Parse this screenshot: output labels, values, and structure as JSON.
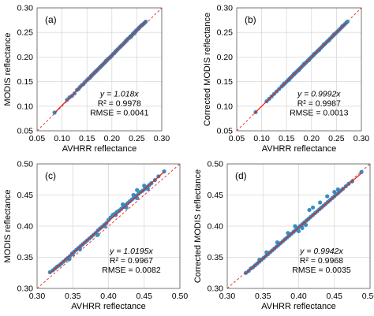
{
  "chart_data": [
    {
      "type": "scatter",
      "panel_label": "(a)",
      "xlabel": "AVHRR reflectance",
      "ylabel": "MODIS reflectance",
      "xlim": [
        0.05,
        0.3
      ],
      "ylim": [
        0.05,
        0.3
      ],
      "xticks": [
        0.05,
        0.1,
        0.15,
        0.2,
        0.25,
        0.3
      ],
      "yticks": [
        0.05,
        0.1,
        0.15,
        0.2,
        0.25,
        0.3
      ],
      "tick_labels_x": [
        "0.05",
        "0.10",
        "0.15",
        "0.20",
        "0.25",
        "0.30"
      ],
      "tick_labels_y": [
        "0.05",
        "0.10",
        "0.15",
        "0.20",
        "0.25",
        "0.30"
      ],
      "equation": "y = 1.018x",
      "r2": "R² = 0.9978",
      "rmse": "RMSE = 0.0041",
      "slope": 1.018,
      "fit_range": [
        0.085,
        0.268
      ],
      "one_to_one_line": true,
      "grid": true,
      "points": [
        [
          0.085,
          0.087
        ],
        [
          0.11,
          0.113
        ],
        [
          0.115,
          0.118
        ],
        [
          0.12,
          0.121
        ],
        [
          0.125,
          0.126
        ],
        [
          0.13,
          0.133
        ],
        [
          0.133,
          0.135
        ],
        [
          0.136,
          0.139
        ],
        [
          0.14,
          0.143
        ],
        [
          0.143,
          0.145
        ],
        [
          0.146,
          0.149
        ],
        [
          0.15,
          0.153
        ],
        [
          0.153,
          0.156
        ],
        [
          0.156,
          0.158
        ],
        [
          0.158,
          0.161
        ],
        [
          0.16,
          0.163
        ],
        [
          0.163,
          0.166
        ],
        [
          0.165,
          0.168
        ],
        [
          0.167,
          0.17
        ],
        [
          0.17,
          0.173
        ],
        [
          0.172,
          0.175
        ],
        [
          0.175,
          0.178
        ],
        [
          0.177,
          0.18
        ],
        [
          0.18,
          0.183
        ],
        [
          0.182,
          0.185
        ],
        [
          0.185,
          0.188
        ],
        [
          0.187,
          0.19
        ],
        [
          0.19,
          0.193
        ],
        [
          0.192,
          0.196
        ],
        [
          0.195,
          0.198
        ],
        [
          0.197,
          0.2
        ],
        [
          0.2,
          0.203
        ],
        [
          0.202,
          0.206
        ],
        [
          0.205,
          0.208
        ],
        [
          0.207,
          0.211
        ],
        [
          0.21,
          0.214
        ],
        [
          0.212,
          0.216
        ],
        [
          0.215,
          0.219
        ],
        [
          0.217,
          0.221
        ],
        [
          0.22,
          0.224
        ],
        [
          0.222,
          0.226
        ],
        [
          0.225,
          0.229
        ],
        [
          0.227,
          0.231
        ],
        [
          0.23,
          0.234
        ],
        [
          0.232,
          0.237
        ],
        [
          0.235,
          0.239
        ],
        [
          0.237,
          0.242
        ],
        [
          0.24,
          0.244
        ],
        [
          0.242,
          0.247
        ],
        [
          0.244,
          0.249
        ],
        [
          0.246,
          0.251
        ],
        [
          0.248,
          0.253
        ],
        [
          0.25,
          0.255
        ],
        [
          0.252,
          0.257
        ],
        [
          0.254,
          0.259
        ],
        [
          0.256,
          0.261
        ],
        [
          0.258,
          0.263
        ],
        [
          0.26,
          0.265
        ],
        [
          0.262,
          0.266
        ],
        [
          0.264,
          0.268
        ],
        [
          0.266,
          0.27
        ],
        [
          0.268,
          0.272
        ],
        [
          0.245,
          0.248
        ],
        [
          0.238,
          0.241
        ],
        [
          0.228,
          0.233
        ],
        [
          0.218,
          0.222
        ],
        [
          0.208,
          0.212
        ],
        [
          0.198,
          0.201
        ],
        [
          0.188,
          0.192
        ],
        [
          0.178,
          0.181
        ],
        [
          0.168,
          0.171
        ],
        [
          0.159,
          0.162
        ]
      ]
    },
    {
      "type": "scatter",
      "panel_label": "(b)",
      "xlabel": "AVHRR reflectance",
      "ylabel": "Corrected MODIS reflectance",
      "xlim": [
        0.05,
        0.3
      ],
      "ylim": [
        0.05,
        0.3
      ],
      "xticks": [
        0.05,
        0.1,
        0.15,
        0.2,
        0.25,
        0.3
      ],
      "yticks": [
        0.05,
        0.1,
        0.15,
        0.2,
        0.25,
        0.3
      ],
      "tick_labels_x": [
        "0.05",
        "0.10",
        "0.15",
        "0.20",
        "0.25",
        "0.30"
      ],
      "tick_labels_y": [
        "0.05",
        "0.10",
        "0.15",
        "0.20",
        "0.25",
        "0.30"
      ],
      "equation": "y = 0.9992x",
      "r2": "R² = 0.9987",
      "rmse": "RMSE = 0.0013",
      "slope": 0.9992,
      "fit_range": [
        0.085,
        0.27
      ],
      "one_to_one_line": true,
      "grid": true,
      "points": [
        [
          0.088,
          0.088
        ],
        [
          0.11,
          0.11
        ],
        [
          0.115,
          0.115
        ],
        [
          0.12,
          0.12
        ],
        [
          0.125,
          0.125
        ],
        [
          0.13,
          0.13
        ],
        [
          0.135,
          0.135
        ],
        [
          0.14,
          0.14
        ],
        [
          0.143,
          0.143
        ],
        [
          0.146,
          0.146
        ],
        [
          0.15,
          0.15
        ],
        [
          0.153,
          0.153
        ],
        [
          0.156,
          0.156
        ],
        [
          0.159,
          0.159
        ],
        [
          0.162,
          0.162
        ],
        [
          0.165,
          0.165
        ],
        [
          0.168,
          0.168
        ],
        [
          0.171,
          0.171
        ],
        [
          0.174,
          0.174
        ],
        [
          0.177,
          0.177
        ],
        [
          0.18,
          0.18
        ],
        [
          0.183,
          0.183
        ],
        [
          0.186,
          0.186
        ],
        [
          0.189,
          0.189
        ],
        [
          0.192,
          0.192
        ],
        [
          0.195,
          0.195
        ],
        [
          0.198,
          0.198
        ],
        [
          0.201,
          0.201
        ],
        [
          0.204,
          0.204
        ],
        [
          0.207,
          0.207
        ],
        [
          0.21,
          0.21
        ],
        [
          0.213,
          0.213
        ],
        [
          0.216,
          0.216
        ],
        [
          0.219,
          0.219
        ],
        [
          0.222,
          0.222
        ],
        [
          0.225,
          0.225
        ],
        [
          0.228,
          0.228
        ],
        [
          0.231,
          0.231
        ],
        [
          0.234,
          0.234
        ],
        [
          0.237,
          0.237
        ],
        [
          0.24,
          0.24
        ],
        [
          0.243,
          0.243
        ],
        [
          0.246,
          0.246
        ],
        [
          0.249,
          0.249
        ],
        [
          0.252,
          0.252
        ],
        [
          0.255,
          0.255
        ],
        [
          0.258,
          0.258
        ],
        [
          0.261,
          0.261
        ],
        [
          0.264,
          0.264
        ],
        [
          0.267,
          0.267
        ],
        [
          0.27,
          0.27
        ],
        [
          0.272,
          0.272
        ],
        [
          0.245,
          0.246
        ],
        [
          0.235,
          0.234
        ],
        [
          0.225,
          0.226
        ],
        [
          0.215,
          0.214
        ],
        [
          0.205,
          0.206
        ],
        [
          0.195,
          0.194
        ],
        [
          0.185,
          0.186
        ],
        [
          0.175,
          0.174
        ],
        [
          0.165,
          0.166
        ],
        [
          0.155,
          0.154
        ],
        [
          0.145,
          0.146
        ],
        [
          0.262,
          0.263
        ]
      ]
    },
    {
      "type": "scatter",
      "panel_label": "(c)",
      "xlabel": "AVHRR reflectance",
      "ylabel": "MODIS reflectance",
      "xlim": [
        0.3,
        0.5
      ],
      "ylim": [
        0.3,
        0.5
      ],
      "xticks": [
        0.3,
        0.35,
        0.4,
        0.45,
        0.5
      ],
      "yticks": [
        0.3,
        0.35,
        0.4,
        0.45,
        0.5
      ],
      "tick_labels_x": [
        "0.30",
        "0.35",
        "0.40",
        "0.45",
        "0.50"
      ],
      "tick_labels_y": [
        "0.30",
        "0.35",
        "0.40",
        "0.45",
        "0.50"
      ],
      "equation": "y = 1.0195x",
      "r2": "R² = 0.9967",
      "rmse": "RMSE = 0.0082",
      "slope": 1.0195,
      "fit_range": [
        0.318,
        0.478
      ],
      "one_to_one_line": true,
      "grid": true,
      "points": [
        [
          0.318,
          0.326
        ],
        [
          0.322,
          0.329
        ],
        [
          0.325,
          0.332
        ],
        [
          0.328,
          0.335
        ],
        [
          0.331,
          0.337
        ],
        [
          0.334,
          0.34
        ],
        [
          0.337,
          0.343
        ],
        [
          0.34,
          0.346
        ],
        [
          0.343,
          0.349
        ],
        [
          0.346,
          0.352
        ],
        [
          0.349,
          0.356
        ],
        [
          0.352,
          0.359
        ],
        [
          0.355,
          0.362
        ],
        [
          0.358,
          0.365
        ],
        [
          0.361,
          0.368
        ],
        [
          0.364,
          0.371
        ],
        [
          0.367,
          0.374
        ],
        [
          0.37,
          0.377
        ],
        [
          0.373,
          0.38
        ],
        [
          0.376,
          0.383
        ],
        [
          0.379,
          0.386
        ],
        [
          0.382,
          0.389
        ],
        [
          0.385,
          0.393
        ],
        [
          0.388,
          0.396
        ],
        [
          0.391,
          0.399
        ],
        [
          0.394,
          0.402
        ],
        [
          0.397,
          0.405
        ],
        [
          0.4,
          0.41
        ],
        [
          0.403,
          0.414
        ],
        [
          0.406,
          0.418
        ],
        [
          0.409,
          0.42
        ],
        [
          0.412,
          0.423
        ],
        [
          0.415,
          0.425
        ],
        [
          0.418,
          0.428
        ],
        [
          0.421,
          0.431
        ],
        [
          0.424,
          0.434
        ],
        [
          0.427,
          0.437
        ],
        [
          0.43,
          0.44
        ],
        [
          0.433,
          0.443
        ],
        [
          0.436,
          0.446
        ],
        [
          0.439,
          0.449
        ],
        [
          0.442,
          0.452
        ],
        [
          0.445,
          0.455
        ],
        [
          0.448,
          0.457
        ],
        [
          0.451,
          0.46
        ],
        [
          0.454,
          0.463
        ],
        [
          0.457,
          0.466
        ],
        [
          0.46,
          0.469
        ],
        [
          0.465,
          0.474
        ],
        [
          0.47,
          0.48
        ],
        [
          0.478,
          0.488
        ],
        [
          0.41,
          0.418
        ],
        [
          0.42,
          0.435
        ],
        [
          0.425,
          0.43
        ],
        [
          0.435,
          0.45
        ],
        [
          0.44,
          0.445
        ],
        [
          0.45,
          0.465
        ],
        [
          0.455,
          0.46
        ],
        [
          0.395,
          0.4
        ],
        [
          0.385,
          0.386
        ],
        [
          0.36,
          0.363
        ],
        [
          0.35,
          0.355
        ],
        [
          0.345,
          0.347
        ],
        [
          0.44,
          0.458
        ]
      ]
    },
    {
      "type": "scatter",
      "panel_label": "(d)",
      "xlabel": "AVHRR reflectance",
      "ylabel": "Corrected MODIS reflectance",
      "xlim": [
        0.3,
        0.5
      ],
      "ylim": [
        0.3,
        0.5
      ],
      "xticks": [
        0.3,
        0.35,
        0.4,
        0.45,
        0.5
      ],
      "yticks": [
        0.3,
        0.35,
        0.4,
        0.45,
        0.5
      ],
      "tick_labels_x": [
        "0.30",
        "0.35",
        "0.40",
        "0.45",
        "0.50"
      ],
      "tick_labels_y": [
        "0.30",
        "0.35",
        "0.40",
        "0.45",
        "0.50"
      ],
      "equation": "y = 0.9942x",
      "r2": "R² = 0.9968",
      "rmse": "RMSE = 0.0035",
      "slope": 0.9942,
      "fit_range": [
        0.325,
        0.488
      ],
      "one_to_one_line": true,
      "grid": true,
      "points": [
        [
          0.326,
          0.325
        ],
        [
          0.33,
          0.328
        ],
        [
          0.333,
          0.332
        ],
        [
          0.336,
          0.334
        ],
        [
          0.339,
          0.337
        ],
        [
          0.342,
          0.34
        ],
        [
          0.345,
          0.343
        ],
        [
          0.348,
          0.346
        ],
        [
          0.351,
          0.349
        ],
        [
          0.354,
          0.352
        ],
        [
          0.357,
          0.355
        ],
        [
          0.36,
          0.358
        ],
        [
          0.363,
          0.361
        ],
        [
          0.366,
          0.364
        ],
        [
          0.369,
          0.367
        ],
        [
          0.372,
          0.37
        ],
        [
          0.375,
          0.373
        ],
        [
          0.378,
          0.376
        ],
        [
          0.381,
          0.379
        ],
        [
          0.384,
          0.382
        ],
        [
          0.387,
          0.385
        ],
        [
          0.39,
          0.388
        ],
        [
          0.393,
          0.391
        ],
        [
          0.396,
          0.394
        ],
        [
          0.399,
          0.397
        ],
        [
          0.402,
          0.4
        ],
        [
          0.405,
          0.403
        ],
        [
          0.408,
          0.406
        ],
        [
          0.411,
          0.409
        ],
        [
          0.414,
          0.412
        ],
        [
          0.417,
          0.415
        ],
        [
          0.42,
          0.418
        ],
        [
          0.423,
          0.421
        ],
        [
          0.426,
          0.424
        ],
        [
          0.429,
          0.427
        ],
        [
          0.432,
          0.43
        ],
        [
          0.435,
          0.433
        ],
        [
          0.438,
          0.436
        ],
        [
          0.441,
          0.439
        ],
        [
          0.444,
          0.442
        ],
        [
          0.447,
          0.445
        ],
        [
          0.45,
          0.448
        ],
        [
          0.453,
          0.451
        ],
        [
          0.456,
          0.454
        ],
        [
          0.459,
          0.457
        ],
        [
          0.462,
          0.46
        ],
        [
          0.466,
          0.464
        ],
        [
          0.47,
          0.468
        ],
        [
          0.475,
          0.472
        ],
        [
          0.488,
          0.487
        ],
        [
          0.4,
          0.392
        ],
        [
          0.405,
          0.397
        ],
        [
          0.41,
          0.402
        ],
        [
          0.415,
          0.426
        ],
        [
          0.42,
          0.43
        ],
        [
          0.43,
          0.438
        ],
        [
          0.44,
          0.448
        ],
        [
          0.385,
          0.389
        ],
        [
          0.37,
          0.374
        ],
        [
          0.355,
          0.358
        ],
        [
          0.345,
          0.346
        ],
        [
          0.45,
          0.455
        ],
        [
          0.455,
          0.459
        ],
        [
          0.395,
          0.4
        ]
      ]
    }
  ],
  "colors": {
    "point": "#2E86C1",
    "fit_line": "#E0281E",
    "one_to_one": "#E0281E",
    "grid": "#D9D9D9",
    "axis": "#595959"
  }
}
